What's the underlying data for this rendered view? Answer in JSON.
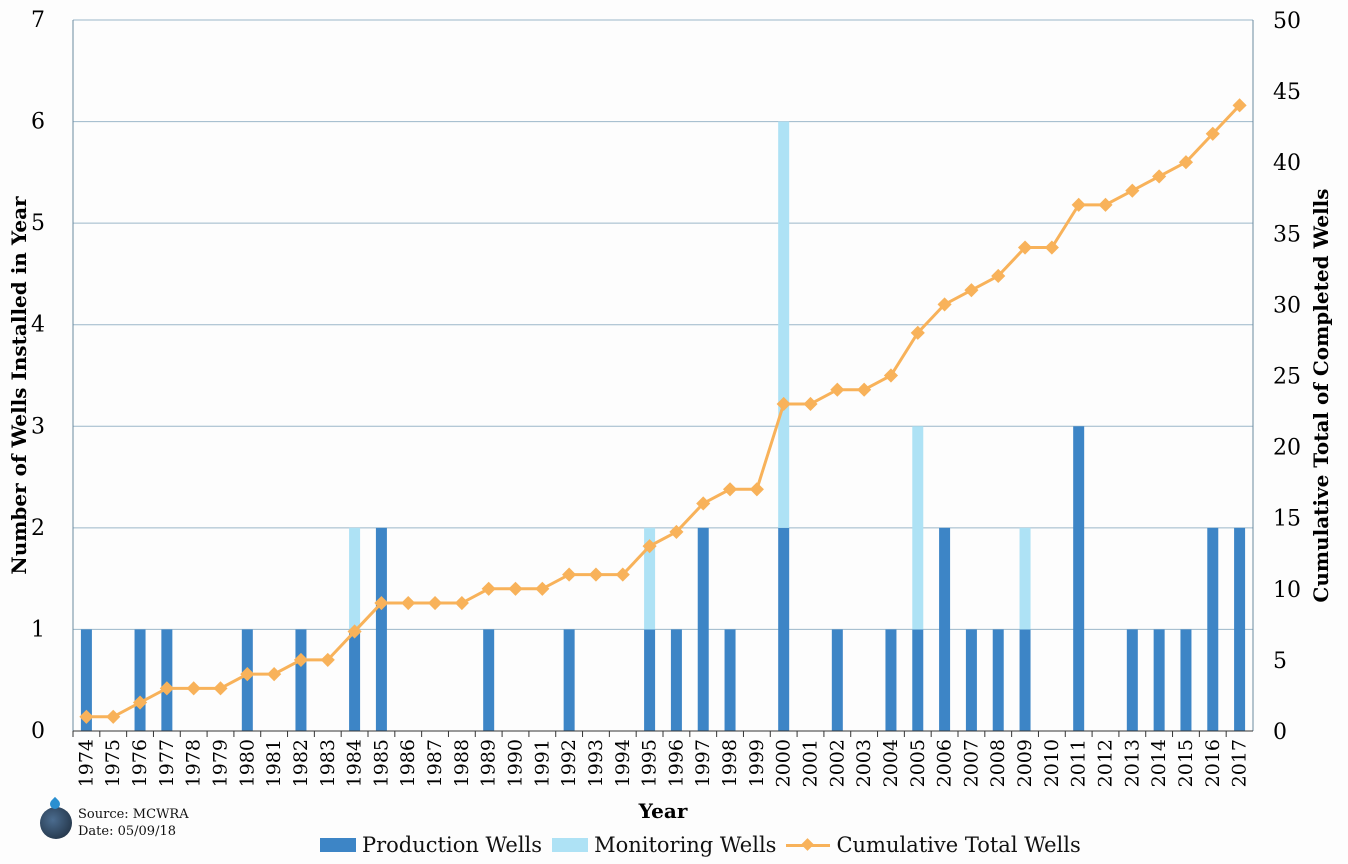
{
  "chart_data": {
    "type": "bar",
    "xlabel": "Year",
    "ylabel": "Number of Wells Installed in Year",
    "y2label": "Cumulative Total of Completed Wells",
    "ylim": [
      0,
      7
    ],
    "y2lim": [
      0,
      50
    ],
    "yticks": [
      "0",
      "1",
      "2",
      "3",
      "4",
      "5",
      "6",
      "7"
    ],
    "y2ticks": [
      "0",
      "5",
      "10",
      "15",
      "20",
      "25",
      "30",
      "35",
      "40",
      "45",
      "50"
    ],
    "grid": true,
    "legend_position": "bottom",
    "categories": [
      "1974",
      "1975",
      "1976",
      "1977",
      "1978",
      "1979",
      "1980",
      "1981",
      "1982",
      "1983",
      "1984",
      "1985",
      "1986",
      "1987",
      "1988",
      "1989",
      "1990",
      "1991",
      "1992",
      "1993",
      "1994",
      "1995",
      "1996",
      "1997",
      "1998",
      "1999",
      "2000",
      "2001",
      "2002",
      "2003",
      "2004",
      "2005",
      "2006",
      "2007",
      "2008",
      "2009",
      "2010",
      "2011",
      "2012",
      "2013",
      "2014",
      "2015",
      "2016",
      "2017"
    ],
    "series": [
      {
        "name": "Production Wells",
        "kind": "bar",
        "color": "#3d85c6",
        "values": [
          1,
          0,
          1,
          1,
          0,
          0,
          1,
          0,
          1,
          0,
          1,
          2,
          0,
          0,
          0,
          1,
          0,
          0,
          1,
          0,
          0,
          1,
          1,
          2,
          1,
          0,
          2,
          0,
          1,
          0,
          1,
          1,
          2,
          1,
          1,
          1,
          0,
          3,
          0,
          1,
          1,
          1,
          2,
          2
        ]
      },
      {
        "name": "Monitoring Wells",
        "kind": "stacked-bar",
        "color": "#aee2f5",
        "values": [
          0,
          0,
          0,
          0,
          0,
          0,
          0,
          0,
          0,
          0,
          1,
          0,
          0,
          0,
          0,
          0,
          0,
          0,
          0,
          0,
          0,
          1,
          0,
          0,
          0,
          0,
          4,
          0,
          0,
          0,
          0,
          2,
          0,
          0,
          0,
          1,
          0,
          0,
          0,
          0,
          0,
          0,
          0,
          0
        ]
      },
      {
        "name": "Cumulative Total Wells",
        "kind": "line",
        "axis": "right",
        "color": "#f8b25a",
        "values": [
          1,
          1,
          2,
          3,
          3,
          3,
          4,
          4,
          5,
          5,
          7,
          9,
          9,
          9,
          9,
          10,
          10,
          10,
          11,
          11,
          11,
          13,
          14,
          16,
          17,
          17,
          23,
          23,
          24,
          24,
          25,
          28,
          30,
          31,
          32,
          34,
          34,
          37,
          37,
          38,
          39,
          40,
          42,
          44
        ]
      }
    ]
  },
  "source": {
    "line1": "Source: MCWRA",
    "line2": "Date: 05/09/18"
  }
}
